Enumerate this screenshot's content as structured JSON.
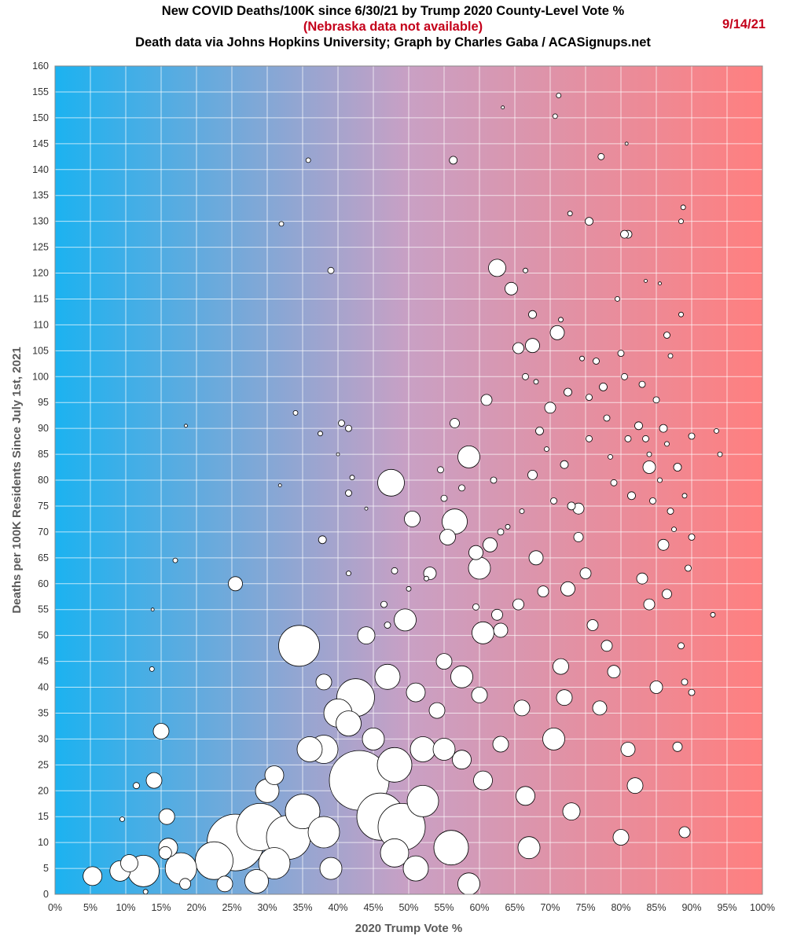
{
  "header": {
    "title": "New COVID Deaths/100K since 6/30/21 by Trump 2020 County-Level Vote %",
    "subtitle": "(Nebraska data not available)",
    "source": "Death data via Johns Hopkins University; Graph by Charles Gaba / ACASignups.net",
    "date": "9/14/21"
  },
  "colors": {
    "left_gradient": "#1cb2f0",
    "middle_gradient": "#c9a0c4",
    "right_gradient": "#ff7f7f",
    "grid": "#ffffff",
    "bubble_fill": "#ffffff",
    "bubble_stroke": "#000000"
  },
  "chart_data": {
    "type": "scatter",
    "title": "New COVID Deaths/100K since 6/30/21 by Trump 2020 County-Level Vote %",
    "xlabel": "2020 Trump Vote %",
    "ylabel": "Deaths per 100K Residents Since July 1st, 2021",
    "xlim": [
      0,
      100
    ],
    "ylim": [
      0,
      160
    ],
    "x_ticks": [
      0,
      5,
      10,
      15,
      20,
      25,
      30,
      35,
      40,
      45,
      50,
      55,
      60,
      65,
      70,
      75,
      80,
      85,
      90,
      95,
      100
    ],
    "x_tick_labels": [
      "0%",
      "5%",
      "10%",
      "15%",
      "20%",
      "25%",
      "30%",
      "35%",
      "40%",
      "45%",
      "50%",
      "55%",
      "60%",
      "65%",
      "70%",
      "75%",
      "80%",
      "85%",
      "90%",
      "95%",
      "100%"
    ],
    "y_ticks": [
      0,
      5,
      10,
      15,
      20,
      25,
      30,
      35,
      40,
      45,
      50,
      55,
      60,
      65,
      70,
      75,
      80,
      85,
      90,
      95,
      100,
      105,
      110,
      115,
      120,
      125,
      130,
      135,
      140,
      145,
      150,
      155,
      160
    ],
    "grid": true,
    "point_format": [
      "x (Trump vote %)",
      "y (deaths per 100K)",
      "relative bubble size (county population)"
    ],
    "points": [
      [
        5.3,
        3.5,
        12
      ],
      [
        9.2,
        4.5,
        13
      ],
      [
        10.5,
        6,
        11
      ],
      [
        12.5,
        4.5,
        20
      ],
      [
        14,
        22,
        10
      ],
      [
        15,
        31.5,
        10
      ],
      [
        15.8,
        15,
        10
      ],
      [
        16,
        9,
        12
      ],
      [
        15.6,
        8,
        8
      ],
      [
        17.8,
        5,
        20
      ],
      [
        18.4,
        2,
        7
      ],
      [
        18.5,
        90.5,
        2
      ],
      [
        17,
        64.5,
        3
      ],
      [
        13.8,
        55,
        2
      ],
      [
        13.7,
        43.5,
        3
      ],
      [
        11.5,
        21,
        4
      ],
      [
        9.5,
        14.5,
        3
      ],
      [
        12.8,
        0.5,
        3
      ],
      [
        22.5,
        6.5,
        24
      ],
      [
        24,
        2,
        10
      ],
      [
        25.5,
        60,
        9
      ],
      [
        25.5,
        10,
        36
      ],
      [
        29,
        13,
        30
      ],
      [
        28.5,
        2.5,
        15
      ],
      [
        30,
        20,
        15
      ],
      [
        31,
        23,
        12
      ],
      [
        34.5,
        48,
        26
      ],
      [
        35,
        16,
        22
      ],
      [
        33,
        11,
        28
      ],
      [
        31,
        6,
        20
      ],
      [
        36,
        28,
        16
      ],
      [
        38,
        28,
        18
      ],
      [
        38,
        41,
        10
      ],
      [
        38,
        12,
        20
      ],
      [
        39,
        5,
        14
      ],
      [
        40,
        35,
        18
      ],
      [
        41.5,
        33,
        16
      ],
      [
        42.5,
        38,
        24
      ],
      [
        43,
        22,
        38
      ],
      [
        44,
        50,
        11
      ],
      [
        45,
        30,
        14
      ],
      [
        46,
        15,
        30
      ],
      [
        47,
        42,
        16
      ],
      [
        47.5,
        79.5,
        17
      ],
      [
        48,
        25,
        22
      ],
      [
        49,
        13,
        30
      ],
      [
        48,
        8,
        18
      ],
      [
        49.5,
        53,
        14
      ],
      [
        50.5,
        72.5,
        10
      ],
      [
        51,
        39,
        12
      ],
      [
        52,
        28,
        16
      ],
      [
        52,
        18,
        20
      ],
      [
        51,
        5,
        16
      ],
      [
        53,
        62,
        8
      ],
      [
        54,
        35.5,
        10
      ],
      [
        55,
        45,
        10
      ],
      [
        55,
        28,
        14
      ],
      [
        55.5,
        69,
        10
      ],
      [
        56,
        9,
        22
      ],
      [
        56.5,
        72,
        16
      ],
      [
        57.5,
        42,
        14
      ],
      [
        57.5,
        26,
        12
      ],
      [
        58.5,
        84.5,
        14
      ],
      [
        58.5,
        2,
        14
      ],
      [
        59.5,
        66,
        9
      ],
      [
        60,
        63,
        14
      ],
      [
        60.5,
        50.5,
        14
      ],
      [
        60,
        38.5,
        10
      ],
      [
        60.5,
        22,
        12
      ],
      [
        61,
        95.5,
        7
      ],
      [
        61.5,
        67.5,
        9
      ],
      [
        62.5,
        121,
        11
      ],
      [
        62.5,
        54,
        7
      ],
      [
        63,
        51,
        9
      ],
      [
        63,
        29,
        10
      ],
      [
        64.5,
        117,
        8
      ],
      [
        65.5,
        105.5,
        7
      ],
      [
        65.5,
        56,
        7
      ],
      [
        66,
        36,
        10
      ],
      [
        66.5,
        19,
        12
      ],
      [
        67,
        9,
        14
      ],
      [
        67.5,
        106,
        9
      ],
      [
        68,
        65,
        9
      ],
      [
        69,
        58.5,
        7
      ],
      [
        70,
        94,
        7
      ],
      [
        70.5,
        30,
        14
      ],
      [
        71,
        108.5,
        9
      ],
      [
        71.5,
        44,
        10
      ],
      [
        72,
        38,
        10
      ],
      [
        72.5,
        59,
        9
      ],
      [
        73,
        16,
        11
      ],
      [
        74,
        74.5,
        7
      ],
      [
        75,
        62,
        7
      ],
      [
        75.5,
        130,
        5
      ],
      [
        76,
        52,
        7
      ],
      [
        77,
        36,
        9
      ],
      [
        78,
        48,
        7
      ],
      [
        79,
        43,
        8
      ],
      [
        80,
        11,
        10
      ],
      [
        81,
        127.5,
        5
      ],
      [
        81,
        28,
        9
      ],
      [
        82,
        21,
        10
      ],
      [
        83,
        61,
        7
      ],
      [
        84,
        82.5,
        8
      ],
      [
        84,
        56,
        7
      ],
      [
        85,
        40,
        8
      ],
      [
        86,
        67.5,
        7
      ],
      [
        86.5,
        58,
        6
      ],
      [
        88,
        28.5,
        6
      ],
      [
        89,
        12,
        7
      ],
      [
        90,
        88.5,
        4
      ],
      [
        93.5,
        89.5,
        3
      ],
      [
        94,
        85,
        3
      ],
      [
        93,
        54,
        3
      ],
      [
        88.5,
        130,
        3
      ],
      [
        88.8,
        132.7,
        3
      ],
      [
        88.5,
        112,
        3
      ],
      [
        35.8,
        141.8,
        3
      ],
      [
        56.3,
        141.8,
        5
      ],
      [
        63.3,
        152,
        2
      ],
      [
        71.2,
        154.3,
        3
      ],
      [
        70.7,
        150.3,
        3
      ],
      [
        72.8,
        131.5,
        3
      ],
      [
        77.2,
        142.5,
        4
      ],
      [
        80.8,
        145,
        2
      ],
      [
        32,
        129.5,
        3
      ],
      [
        39,
        120.5,
        4
      ],
      [
        34,
        93,
        3
      ],
      [
        37.5,
        89,
        3
      ],
      [
        40.5,
        91,
        4
      ],
      [
        41.5,
        90,
        4
      ],
      [
        40,
        85,
        2
      ],
      [
        42,
        80.5,
        3
      ],
      [
        41.5,
        77.5,
        4
      ],
      [
        31.8,
        79,
        2
      ],
      [
        37.8,
        68.5,
        5
      ],
      [
        41.5,
        62,
        3
      ],
      [
        44,
        74.5,
        2
      ],
      [
        46.5,
        56,
        4
      ],
      [
        48,
        62.5,
        4
      ],
      [
        47,
        52,
        4
      ],
      [
        50,
        59,
        3
      ],
      [
        52.5,
        61,
        3
      ],
      [
        54.5,
        82,
        4
      ],
      [
        55,
        76.5,
        4
      ],
      [
        56.5,
        91,
        6
      ],
      [
        57.5,
        78.5,
        4
      ],
      [
        59.5,
        55.5,
        4
      ],
      [
        62,
        80,
        4
      ],
      [
        63,
        70,
        4
      ],
      [
        64,
        71,
        3
      ],
      [
        66,
        74,
        3
      ],
      [
        67.5,
        81,
        6
      ],
      [
        68.5,
        89.5,
        5
      ],
      [
        69.5,
        86,
        3
      ],
      [
        70.5,
        76,
        4
      ],
      [
        72,
        83,
        5
      ],
      [
        73,
        75,
        5
      ],
      [
        74,
        69,
        6
      ],
      [
        75.5,
        88,
        4
      ],
      [
        76.5,
        103,
        4
      ],
      [
        77.5,
        98,
        5
      ],
      [
        78.5,
        84.5,
        3
      ],
      [
        79,
        79.5,
        4
      ],
      [
        80,
        104.5,
        4
      ],
      [
        80.5,
        100,
        4
      ],
      [
        81,
        88,
        4
      ],
      [
        81.5,
        77,
        5
      ],
      [
        82.5,
        90.5,
        5
      ],
      [
        83,
        98.5,
        4
      ],
      [
        83.5,
        88,
        4
      ],
      [
        84,
        85,
        3
      ],
      [
        84.5,
        76,
        4
      ],
      [
        85,
        95.5,
        4
      ],
      [
        85.5,
        80,
        3
      ],
      [
        86,
        90,
        5
      ],
      [
        86.5,
        87,
        3
      ],
      [
        87,
        74,
        4
      ],
      [
        87.5,
        70.5,
        3
      ],
      [
        88,
        82.5,
        5
      ],
      [
        89,
        77,
        3
      ],
      [
        90,
        69,
        4
      ],
      [
        89.5,
        63,
        4
      ],
      [
        88.5,
        48,
        4
      ],
      [
        89,
        41,
        4
      ],
      [
        90,
        39,
        4
      ],
      [
        66.5,
        120.5,
        3
      ],
      [
        67.5,
        112,
        5
      ],
      [
        71.5,
        111,
        3
      ],
      [
        66.5,
        100,
        4
      ],
      [
        68,
        99,
        3
      ],
      [
        72.5,
        97,
        5
      ],
      [
        74.5,
        103.5,
        3
      ],
      [
        75.5,
        96,
        4
      ],
      [
        78,
        92,
        4
      ],
      [
        79.5,
        115,
        3
      ],
      [
        80.5,
        127.5,
        5
      ],
      [
        83.5,
        118.5,
        2
      ],
      [
        85.5,
        118,
        2
      ],
      [
        86.5,
        108,
        4
      ],
      [
        87,
        104,
        3
      ]
    ]
  }
}
